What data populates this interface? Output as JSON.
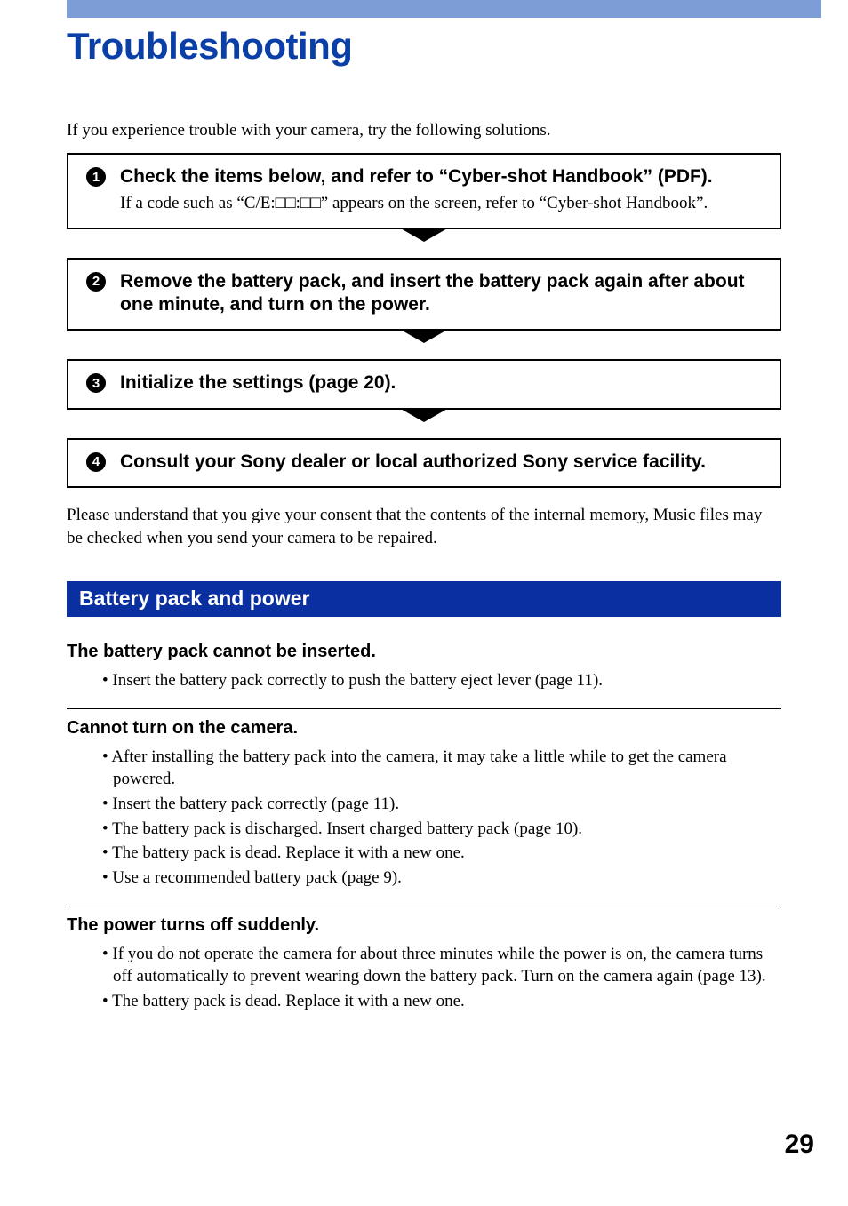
{
  "colors": {
    "top_bar": "#7c9dd6",
    "title": "#0a3fa8",
    "section_bar_bg": "#0a2fa0",
    "section_bar_text": "#ffffff",
    "border": "#000000",
    "background": "#ffffff"
  },
  "title": "Troubleshooting",
  "intro": "If you experience trouble with your camera, try the following solutions.",
  "steps": [
    {
      "num": "1",
      "title": "Check the items below, and refer to “Cyber-shot Handbook” (PDF).",
      "desc": "If a code such as “C/E:□□:□□” appears on the screen, refer to “Cyber-shot Handbook”."
    },
    {
      "num": "2",
      "title": "Remove the battery pack, and insert the battery pack again after about one minute, and turn on the power.",
      "desc": ""
    },
    {
      "num": "3",
      "title": "Initialize the settings (page 20).",
      "desc": ""
    },
    {
      "num": "4",
      "title": "Consult your Sony dealer or local authorized Sony service facility.",
      "desc": ""
    }
  ],
  "consent": "Please understand that you give your consent that the contents of the internal memory, Music files may be checked when you send your camera to be repaired.",
  "section_heading": "Battery pack and power",
  "issues": [
    {
      "title": "The battery pack cannot be inserted.",
      "items": [
        "Insert the battery pack correctly to push the battery eject lever (page 11)."
      ]
    },
    {
      "title": "Cannot turn on the camera.",
      "items": [
        "After installing the battery pack into the camera, it may take a little while to get the camera powered.",
        "Insert the battery pack correctly (page 11).",
        "The battery pack is discharged. Insert charged battery pack (page 10).",
        "The battery pack is dead. Replace it with a new one.",
        "Use a recommended battery pack (page 9)."
      ]
    },
    {
      "title": "The power turns off suddenly.",
      "items": [
        "If you do not operate the camera for about three minutes while the power is on, the camera turns off automatically to prevent wearing down the battery pack. Turn on the camera again (page 13).",
        "The battery pack is dead. Replace it with a new one."
      ]
    }
  ],
  "page_number": "29"
}
